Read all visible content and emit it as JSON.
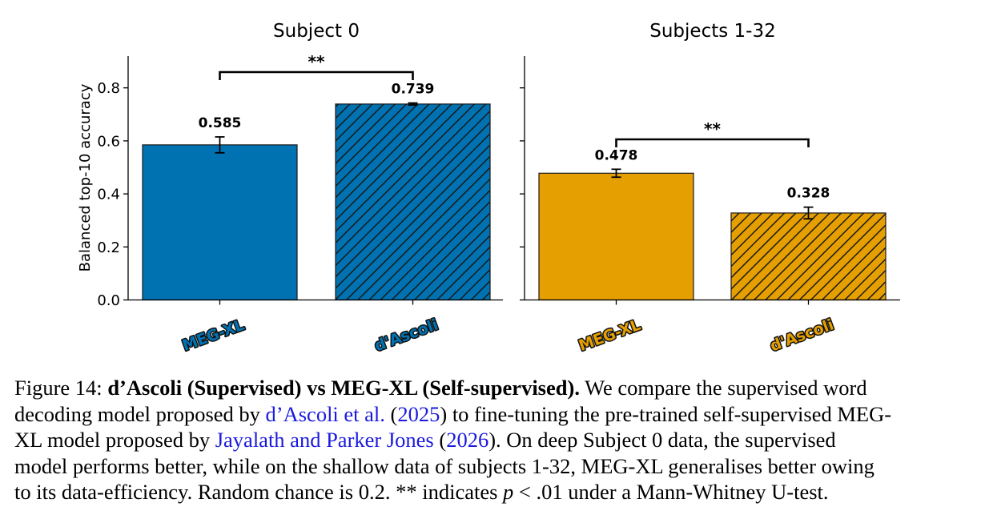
{
  "chart_data": [
    {
      "type": "bar",
      "title": "Subject 0",
      "ylabel": "Balanced top-10 accuracy",
      "xlabel": "",
      "ylim": [
        0,
        0.92
      ],
      "yticks": [
        "0.0",
        "0.2",
        "0.4",
        "0.6",
        "0.8"
      ],
      "categories": [
        "MEG-XL",
        "d'Ascoli"
      ],
      "values": [
        0.585,
        0.739
      ],
      "value_labels": [
        "0.585",
        "0.739"
      ],
      "errors": [
        0.03,
        0.004
      ],
      "hatched": [
        false,
        true
      ],
      "significance": "**",
      "color": "#0072b2",
      "grid": false
    },
    {
      "type": "bar",
      "title": "Subjects 1-32",
      "ylabel": "",
      "xlabel": "",
      "ylim": [
        0,
        0.92
      ],
      "categories": [
        "MEG-XL",
        "d'Ascoli"
      ],
      "values": [
        0.478,
        0.328
      ],
      "value_labels": [
        "0.478",
        "0.328"
      ],
      "errors": [
        0.015,
        0.022
      ],
      "hatched": [
        false,
        true
      ],
      "significance": "**",
      "color": "#e69f00",
      "grid": false
    }
  ],
  "caption": {
    "line1_prefix": "Figure 14: ",
    "line1_bold": "d’Ascoli (Supervised) vs MEG-XL (Self-supervised).",
    "line1_rest": " We compare the supervised word",
    "line2_a": "decoding model proposed by ",
    "line2_link": "d’Ascoli et al.",
    "line2_b": " (",
    "line2_year": "2025",
    "line2_c": ") to fine-tuning the pre-trained self-supervised MEG-",
    "line3_a": "XL model proposed by ",
    "line3_link": "Jayalath and Parker Jones",
    "line3_b": " (",
    "line3_year": "2026",
    "line3_c": "). On deep Subject 0 data, the supervised",
    "line4": "model performs better, while on the shallow data of subjects 1-32, MEG-XL generalises better owing",
    "line5_a": "to its data-efficiency. Random chance is 0.2. ** indicates ",
    "line5_p": "p",
    "line5_b": " < .01 under a Mann-Whitney U-test."
  }
}
